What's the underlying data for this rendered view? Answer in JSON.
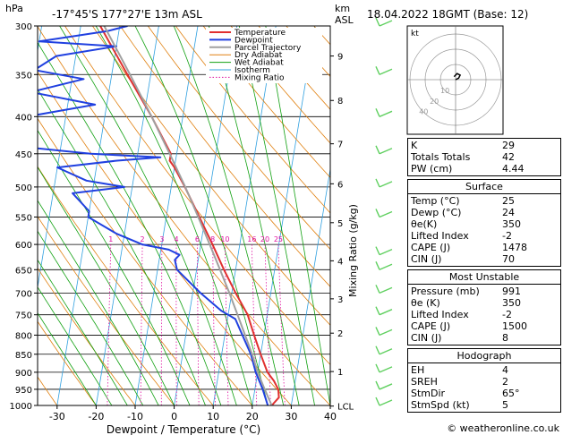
{
  "header": {
    "pressure_unit": "hPa",
    "location": "-17°45'S  177°27'E  13m  ASL",
    "height_unit": "km\nASL",
    "datetime": "18.04.2022  18GMT  (Base: 12)"
  },
  "footer": {
    "credit": "© weatheronline.co.uk"
  },
  "chart_data": {
    "type": "line",
    "subtype": "skew-T log-P sounding",
    "xlabel": "Dewpoint / Temperature (°C)",
    "ylabel": "hPa",
    "right_label": "Mixing Ratio (g/kg)",
    "xlim": [
      -35,
      40
    ],
    "ylim": [
      1000,
      300
    ],
    "pressure_ticks": [
      300,
      350,
      400,
      450,
      500,
      550,
      600,
      650,
      700,
      750,
      800,
      850,
      900,
      950,
      1000
    ],
    "temperature_ticks": [
      -30,
      -20,
      -10,
      0,
      10,
      20,
      30,
      40
    ],
    "height_ticks": [
      {
        "label": "9",
        "p": 330
      },
      {
        "label": "8",
        "p": 380
      },
      {
        "label": "7",
        "p": 436
      },
      {
        "label": "6",
        "p": 495
      },
      {
        "label": "5",
        "p": 560
      },
      {
        "label": "4",
        "p": 632
      },
      {
        "label": "3",
        "p": 713
      },
      {
        "label": "2",
        "p": 795
      },
      {
        "label": "1",
        "p": 898
      },
      {
        "label": "LCL",
        "p": 1002
      }
    ],
    "mixing_ratio_labels": [
      "1",
      "2",
      "3",
      "4",
      "6",
      "8",
      "10",
      "16",
      "20",
      "25"
    ],
    "legend": [
      "Temperature",
      "Dewpoint",
      "Parcel Trajectory",
      "Dry Adiabat",
      "Wet Adiabat",
      "Isotherm",
      "Mixing Ratio"
    ],
    "legend_position": "top-left",
    "colors": {
      "temperature": "#e03030",
      "dewpoint": "#2040e0",
      "parcel": "#a0a0a0",
      "dry_adiabat": "#e08010",
      "wet_adiabat": "#10a010",
      "isotherm": "#30a0e0",
      "mixing_ratio": "#e010a0"
    },
    "series": [
      {
        "name": "Temperature",
        "points": [
          {
            "p": 1000,
            "t": 25.0
          },
          {
            "p": 975,
            "t": 26.5
          },
          {
            "p": 950,
            "t": 26.0
          },
          {
            "p": 925,
            "t": 24.5
          },
          {
            "p": 900,
            "t": 22.5
          },
          {
            "p": 850,
            "t": 20.0
          },
          {
            "p": 800,
            "t": 17.5
          },
          {
            "p": 750,
            "t": 15.0
          },
          {
            "p": 700,
            "t": 11.0
          },
          {
            "p": 650,
            "t": 7.0
          },
          {
            "p": 600,
            "t": 3.0
          },
          {
            "p": 550,
            "t": -1.5
          },
          {
            "p": 500,
            "t": -6.5
          },
          {
            "p": 470,
            "t": -10.0
          },
          {
            "p": 460,
            "t": -11.5
          },
          {
            "p": 450,
            "t": -11.5
          },
          {
            "p": 400,
            "t": -18.0
          },
          {
            "p": 350,
            "t": -26.0
          },
          {
            "p": 300,
            "t": -35.0
          }
        ]
      },
      {
        "name": "Dewpoint",
        "points": [
          {
            "p": 1000,
            "t": 24.0
          },
          {
            "p": 975,
            "t": 23.0
          },
          {
            "p": 950,
            "t": 22.0
          },
          {
            "p": 900,
            "t": 19.5
          },
          {
            "p": 850,
            "t": 17.5
          },
          {
            "p": 800,
            "t": 14.5
          },
          {
            "p": 760,
            "t": 12.0
          },
          {
            "p": 740,
            "t": 8.0
          },
          {
            "p": 700,
            "t": 2.0
          },
          {
            "p": 650,
            "t": -5.0
          },
          {
            "p": 630,
            "t": -6.0
          },
          {
            "p": 620,
            "t": -5.0
          },
          {
            "p": 610,
            "t": -8.0
          },
          {
            "p": 600,
            "t": -15.0
          },
          {
            "p": 580,
            "t": -22.0
          },
          {
            "p": 550,
            "t": -30.0
          },
          {
            "p": 540,
            "t": -30.0
          },
          {
            "p": 510,
            "t": -35.0
          },
          {
            "p": 500,
            "t": -22.0
          },
          {
            "p": 490,
            "t": -32.0
          },
          {
            "p": 470,
            "t": -40.0
          },
          {
            "p": 460,
            "t": -25.0
          },
          {
            "p": 455,
            "t": -14.0
          },
          {
            "p": 450,
            "t": -32.0
          },
          {
            "p": 440,
            "t": -50.0
          },
          {
            "p": 400,
            "t": -50.0
          },
          {
            "p": 385,
            "t": -33.0
          },
          {
            "p": 370,
            "t": -50.0
          },
          {
            "p": 355,
            "t": -37.0
          },
          {
            "p": 345,
            "t": -50.0
          },
          {
            "p": 330,
            "t": -45.0
          },
          {
            "p": 320,
            "t": -30.0
          },
          {
            "p": 315,
            "t": -50.0
          },
          {
            "p": 305,
            "t": -33.0
          },
          {
            "p": 300,
            "t": -28.0
          }
        ]
      },
      {
        "name": "Parcel Trajectory",
        "points": [
          {
            "p": 1000,
            "t": 25.0
          },
          {
            "p": 950,
            "t": 22.5
          },
          {
            "p": 900,
            "t": 20.0
          },
          {
            "p": 850,
            "t": 17.8
          },
          {
            "p": 800,
            "t": 15.2
          },
          {
            "p": 750,
            "t": 12.4
          },
          {
            "p": 700,
            "t": 9.4
          },
          {
            "p": 650,
            "t": 6.0
          },
          {
            "p": 600,
            "t": 2.3
          },
          {
            "p": 550,
            "t": -1.8
          },
          {
            "p": 500,
            "t": -6.4
          },
          {
            "p": 450,
            "t": -11.8
          },
          {
            "p": 400,
            "t": -18.0
          },
          {
            "p": 350,
            "t": -25.3
          },
          {
            "p": 300,
            "t": -34.0
          }
        ]
      }
    ]
  },
  "hodograph": {
    "unit_label": "kt",
    "ring_labels": [
      "10",
      "20",
      "40"
    ],
    "wind_trace": [
      [
        0,
        0
      ],
      [
        2,
        1
      ],
      [
        3,
        3
      ],
      [
        1,
        4
      ],
      [
        -1,
        2
      ]
    ]
  },
  "indices": {
    "basic": [
      {
        "label": "K",
        "value": "29"
      },
      {
        "label": "Totals Totals",
        "value": "42"
      },
      {
        "label": "PW (cm)",
        "value": "4.44"
      }
    ],
    "surface": {
      "title": "Surface",
      "rows": [
        {
          "label": "Temp (°C)",
          "value": "25"
        },
        {
          "label": "Dewp (°C)",
          "value": "24"
        },
        {
          "label": "θe(K)",
          "value": "350"
        },
        {
          "label": "Lifted Index",
          "value": "-2"
        },
        {
          "label": "CAPE (J)",
          "value": "1478"
        },
        {
          "label": "CIN (J)",
          "value": "70"
        }
      ]
    },
    "most_unstable": {
      "title": "Most Unstable",
      "rows": [
        {
          "label": "Pressure (mb)",
          "value": "991"
        },
        {
          "label": "θe (K)",
          "value": "350"
        },
        {
          "label": "Lifted Index",
          "value": "-2"
        },
        {
          "label": "CAPE (J)",
          "value": "1500"
        },
        {
          "label": "CIN (J)",
          "value": "8"
        }
      ]
    },
    "hodograph_box": {
      "title": "Hodograph",
      "rows": [
        {
          "label": "EH",
          "value": "4"
        },
        {
          "label": "SREH",
          "value": "2"
        },
        {
          "label": "StmDir",
          "value": "65°"
        },
        {
          "label": "StmSpd (kt)",
          "value": "5"
        }
      ]
    }
  }
}
